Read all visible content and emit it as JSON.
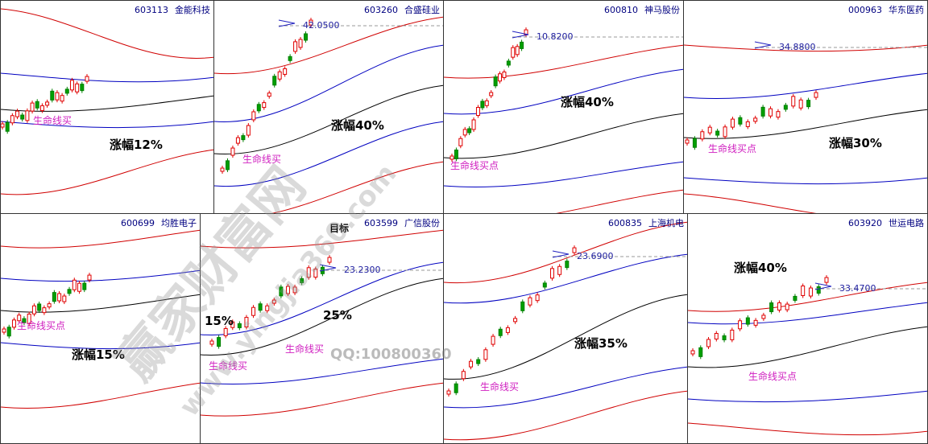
{
  "panels": [
    {
      "code": "603113",
      "name": "金能科技",
      "notes": [
        "生命线买",
        "涨幅12%"
      ]
    },
    {
      "code": "603260",
      "name": "合盛硅业",
      "price": "42.0500",
      "notes": [
        "生命线买",
        "涨幅40%"
      ]
    },
    {
      "code": "600810",
      "name": "神马股份",
      "price": "10.8200",
      "notes": [
        "生命线买点",
        "涨幅40%"
      ]
    },
    {
      "code": "000963",
      "name": "华东医药",
      "price": "34.8800",
      "notes": [
        "生命线买点",
        "涨幅30%"
      ]
    },
    {
      "code": "600699",
      "name": "均胜电子",
      "notes": [
        "生命线买点",
        "涨幅15%"
      ]
    },
    {
      "code": "603599",
      "name": "广信股份",
      "price": "23.2300",
      "notes": [
        "目标",
        "15%",
        "25%",
        "生命线买",
        "生命线买"
      ]
    },
    {
      "code": "600835",
      "name": "上海机电",
      "price": "23.6900",
      "notes": [
        "生命线买",
        "涨幅35%"
      ]
    },
    {
      "code": "603920",
      "name": "世运电路",
      "price": "33.4700",
      "notes": [
        "涨幅40%",
        "生命线买点"
      ]
    }
  ],
  "watermark": {
    "site": "赢家财富网",
    "url": "www.yingjia360.com",
    "qq": "QQ:100800360"
  }
}
